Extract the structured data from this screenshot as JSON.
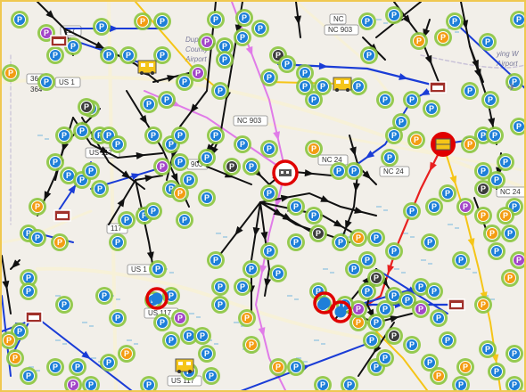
{
  "map": {
    "road_labels": [
      {
        "id": "nc903-a",
        "text": "NC"
      },
      {
        "id": "nc903-b",
        "text": "NC 903"
      },
      {
        "id": "us117-a",
        "text": "117"
      },
      {
        "id": "nc364-a",
        "text": "364"
      },
      {
        "id": "nc364-b",
        "text": "364"
      },
      {
        "id": "us1-a",
        "text": "US 1"
      },
      {
        "id": "us117-b",
        "text": "US 117"
      },
      {
        "id": "nc903-c",
        "text": "NC 903"
      },
      {
        "id": "nc903-d",
        "text": "903"
      },
      {
        "id": "nc24-a",
        "text": "NC 24"
      },
      {
        "id": "nc24-b",
        "text": "NC 24"
      },
      {
        "id": "nc24-c",
        "text": "NC 24"
      },
      {
        "id": "us117-c",
        "text": "117"
      },
      {
        "id": "us117-d",
        "text": "US 1"
      },
      {
        "id": "us117-e",
        "text": "US 117"
      },
      {
        "id": "us117-f",
        "text": "US 117"
      }
    ],
    "place_labels": [
      {
        "id": "duplin-1",
        "text": "Dupl"
      },
      {
        "id": "duplin-2",
        "text": "County"
      },
      {
        "id": "duplin-3",
        "text": "Airport"
      },
      {
        "id": "flying-1",
        "text": "ying W"
      },
      {
        "id": "flying-2",
        "text": "Airport"
      }
    ],
    "pin_letter": "P",
    "colors": {
      "pin_blue": "#1e7fd8",
      "pin_orange": "#f39c12",
      "pin_purple": "#a347c8",
      "pin_dark": "#3d3d3d",
      "ring_green": "#8bc53f",
      "route_black": "#111111",
      "route_blue": "#1a3cd6",
      "route_pink": "#e07be8",
      "route_yellow": "#f5c518",
      "route_red": "#e82020",
      "hub_red": "#e00000"
    },
    "icons": [
      "depot-icon",
      "bus-icon",
      "hub-icon",
      "airport-icon"
    ]
  }
}
